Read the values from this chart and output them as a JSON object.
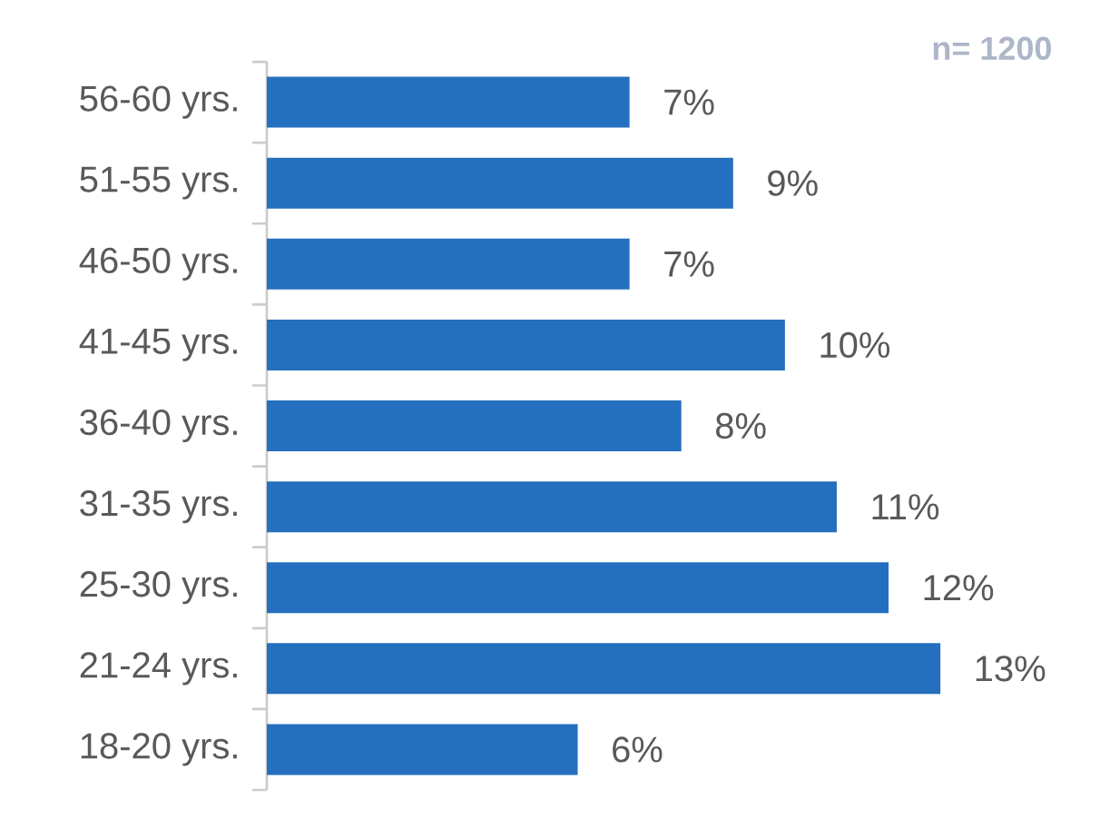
{
  "chart_data": {
    "type": "bar",
    "orientation": "horizontal",
    "categories": [
      "56-60 yrs.",
      "51-55 yrs.",
      "46-50 yrs.",
      "41-45 yrs.",
      "36-40 yrs.",
      "31-35 yrs.",
      "25-30 yrs.",
      "21-24 yrs.",
      "18-20 yrs."
    ],
    "values": [
      7,
      9,
      7,
      10,
      8,
      11,
      12,
      13,
      6
    ],
    "value_labels": [
      "7%",
      "9%",
      "7%",
      "10%",
      "8%",
      "11%",
      "12%",
      "13%",
      "6%"
    ],
    "color": "#2470be",
    "annotations": [
      "n= 1200"
    ]
  }
}
